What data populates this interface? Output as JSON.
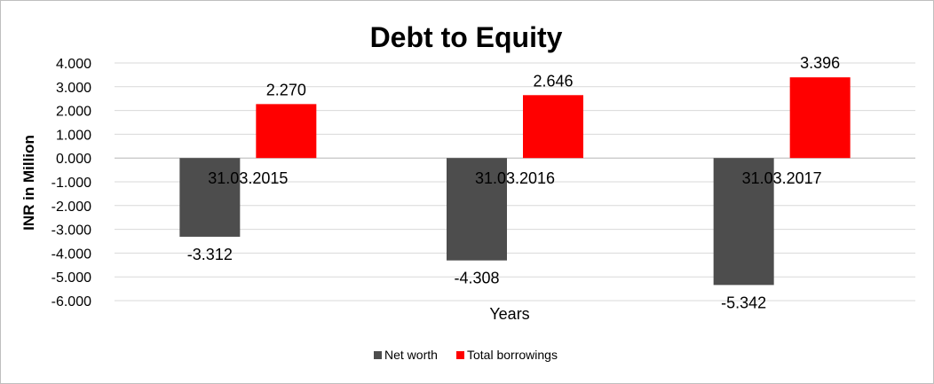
{
  "chart_data": {
    "type": "bar",
    "title": "Debt to Equity",
    "xlabel": "Years",
    "ylabel": "INR in Million",
    "categories": [
      "31.03.2015",
      "31.03.2016",
      "31.03.2017"
    ],
    "series": [
      {
        "name": "Net worth",
        "color": "#4d4d4d",
        "values": [
          -3.312,
          -4.308,
          -5.342
        ]
      },
      {
        "name": "Total borrowings",
        "color": "#ff0000",
        "values": [
          2.27,
          2.646,
          3.396
        ]
      }
    ],
    "ylim": [
      -6,
      4
    ],
    "y_ticks": [
      "4.000",
      "3.000",
      "2.000",
      "1.000",
      "0.000",
      "-1.000",
      "-2.000",
      "-3.000",
      "-4.000",
      "-5.000",
      "-6.000"
    ],
    "data_labels": [
      [
        "-3.312",
        "-4.308",
        "-5.342"
      ],
      [
        "2.270",
        "2.646",
        "3.396"
      ]
    ],
    "grid": true,
    "legend_position": "bottom"
  }
}
